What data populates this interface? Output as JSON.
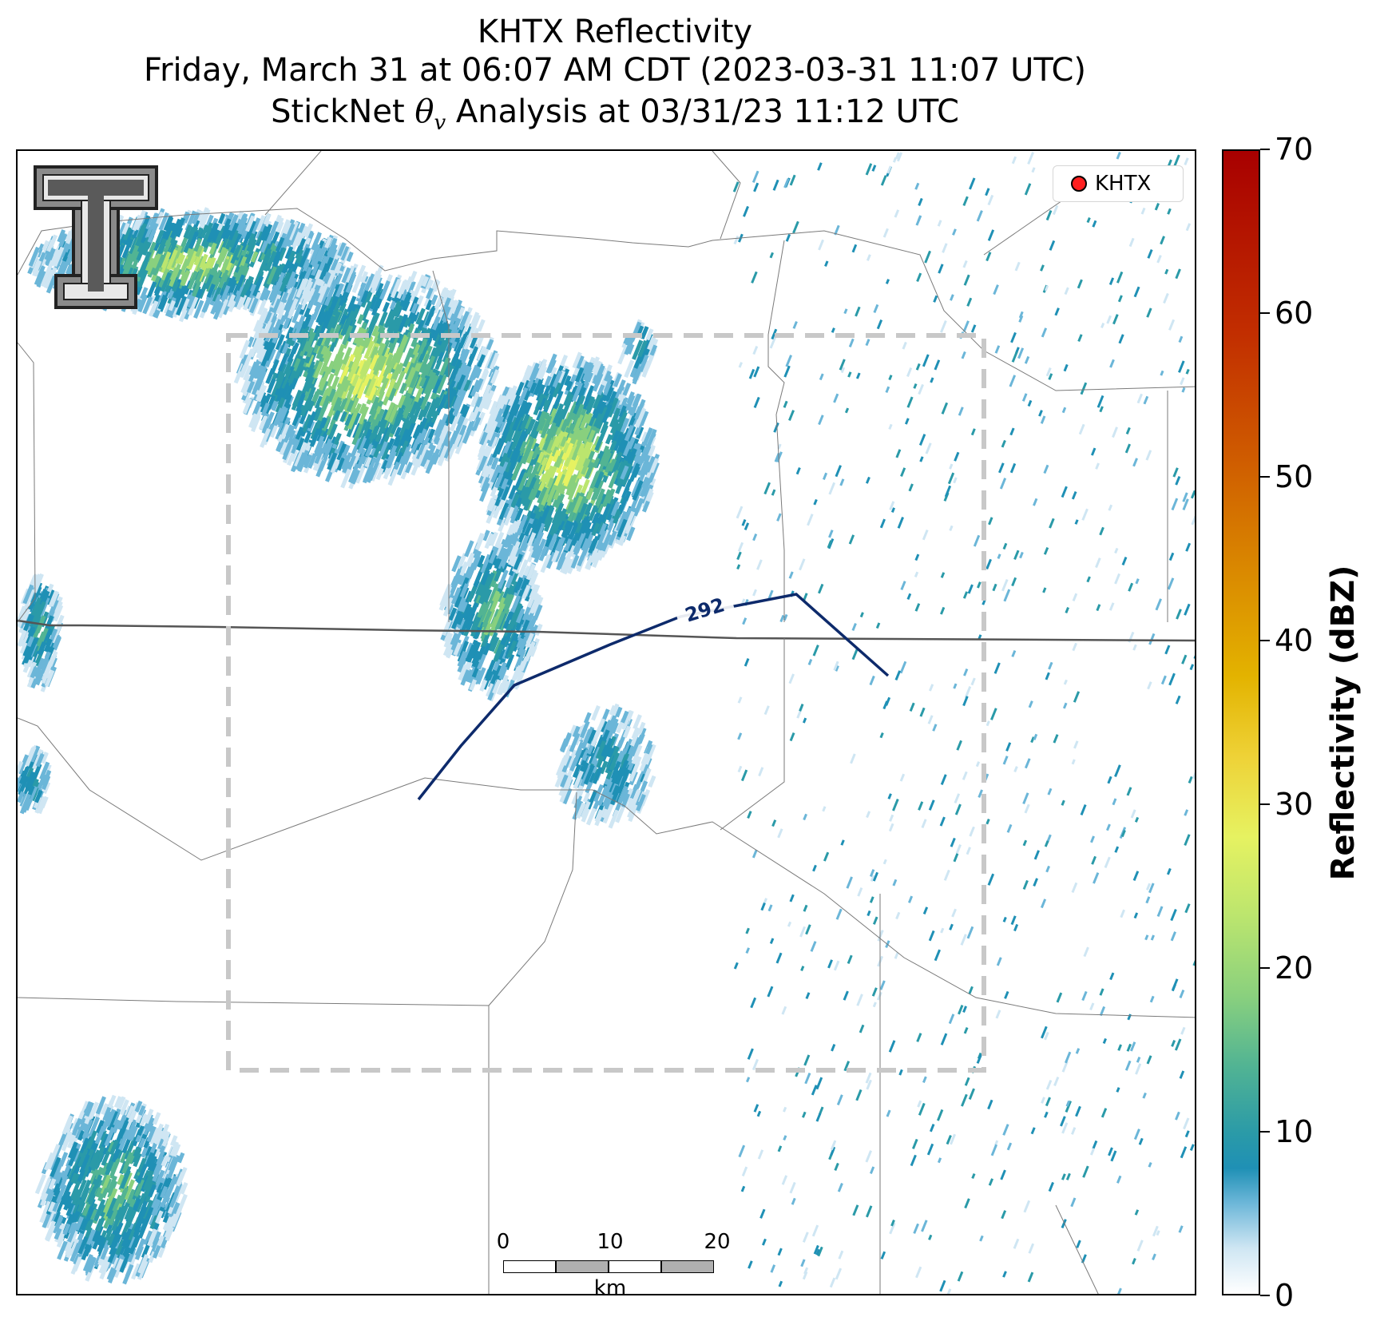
{
  "title": {
    "line1": "KHTX Reflectivity",
    "line2": "Friday, March 31 at 06:07 AM CDT (2023-03-31 11:07 UTC)",
    "line3_prefix": "StickNet ",
    "line3_symbol": "θ",
    "line3_subscript": "v",
    "line3_suffix": " Analysis at 03/31/23 11:12 UTC"
  },
  "legend": {
    "label": "KHTX",
    "marker_color": "#ff2020"
  },
  "contour": {
    "label": "292",
    "color": "#0d2a6b"
  },
  "colorbar": {
    "label": "Reflectivity (dBZ)",
    "min": 0,
    "max": 70,
    "ticks": [
      "0",
      "10",
      "20",
      "30",
      "40",
      "50",
      "60",
      "70"
    ]
  },
  "scalebar": {
    "labels": [
      "0",
      "10",
      "20"
    ],
    "unit": "km"
  },
  "logo": {
    "name": "texas-tech-double-t-logo"
  }
}
